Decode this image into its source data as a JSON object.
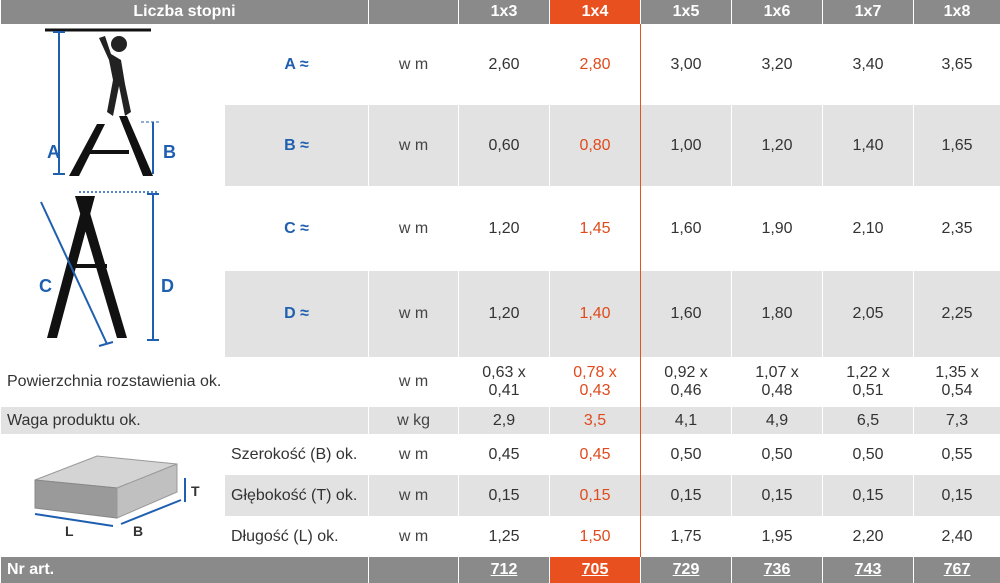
{
  "header": {
    "title": "Liczba stopni",
    "columns": [
      "1x3",
      "1x4",
      "1x5",
      "1x6",
      "1x7",
      "1x8"
    ]
  },
  "rows_dim": [
    {
      "label": "A ≈",
      "unit": "w m",
      "values": [
        "2,60",
        "2,80",
        "3,00",
        "3,20",
        "3,40",
        "3,65"
      ]
    },
    {
      "label": "B ≈",
      "unit": "w m",
      "values": [
        "0,60",
        "0,80",
        "1,00",
        "1,20",
        "1,40",
        "1,65"
      ]
    },
    {
      "label": "C ≈",
      "unit": "w m",
      "values": [
        "1,20",
        "1,45",
        "1,60",
        "1,90",
        "2,10",
        "2,35"
      ]
    },
    {
      "label": "D ≈",
      "unit": "w m",
      "values": [
        "1,20",
        "1,40",
        "1,60",
        "1,80",
        "2,05",
        "2,25"
      ]
    }
  ],
  "surface": {
    "label": "Powierzchnia rozstawienia ok.",
    "unit": "w m",
    "values": [
      [
        "0,63 x",
        "0,41"
      ],
      [
        "0,78 x",
        "0,43"
      ],
      [
        "0,92 x",
        "0,46"
      ],
      [
        "1,07 x",
        "0,48"
      ],
      [
        "1,22 x",
        "0,51"
      ],
      [
        "1,35 x",
        "0,54"
      ]
    ]
  },
  "weight": {
    "label": "Waga produktu ok.",
    "unit": "w kg",
    "values": [
      "2,9",
      "3,5",
      "4,1",
      "4,9",
      "6,5",
      "7,3"
    ]
  },
  "package": [
    {
      "label": "Szerokość (B) ok.",
      "unit": "w m",
      "values": [
        "0,45",
        "0,45",
        "0,50",
        "0,50",
        "0,50",
        "0,55"
      ]
    },
    {
      "label": "Głębokość (T) ok.",
      "unit": "w m",
      "values": [
        "0,15",
        "0,15",
        "0,15",
        "0,15",
        "0,15",
        "0,15"
      ]
    },
    {
      "label": "Długość (L) ok.",
      "unit": "w m",
      "values": [
        "1,25",
        "1,50",
        "1,75",
        "1,95",
        "2,20",
        "2,40"
      ]
    }
  ],
  "footer": {
    "label": "Nr art.",
    "values": [
      "712",
      "705",
      "729",
      "736",
      "743",
      "767"
    ]
  },
  "diagram_labels": {
    "A": "A",
    "B": "B",
    "C": "C",
    "D": "D",
    "T": "T",
    "L": "L",
    "B2": "B"
  },
  "colors": {
    "header": "#8a8a8a",
    "highlight": "#e9501f",
    "label_blue": "#1f5fb0",
    "row_alt": "#e2e2e2"
  }
}
